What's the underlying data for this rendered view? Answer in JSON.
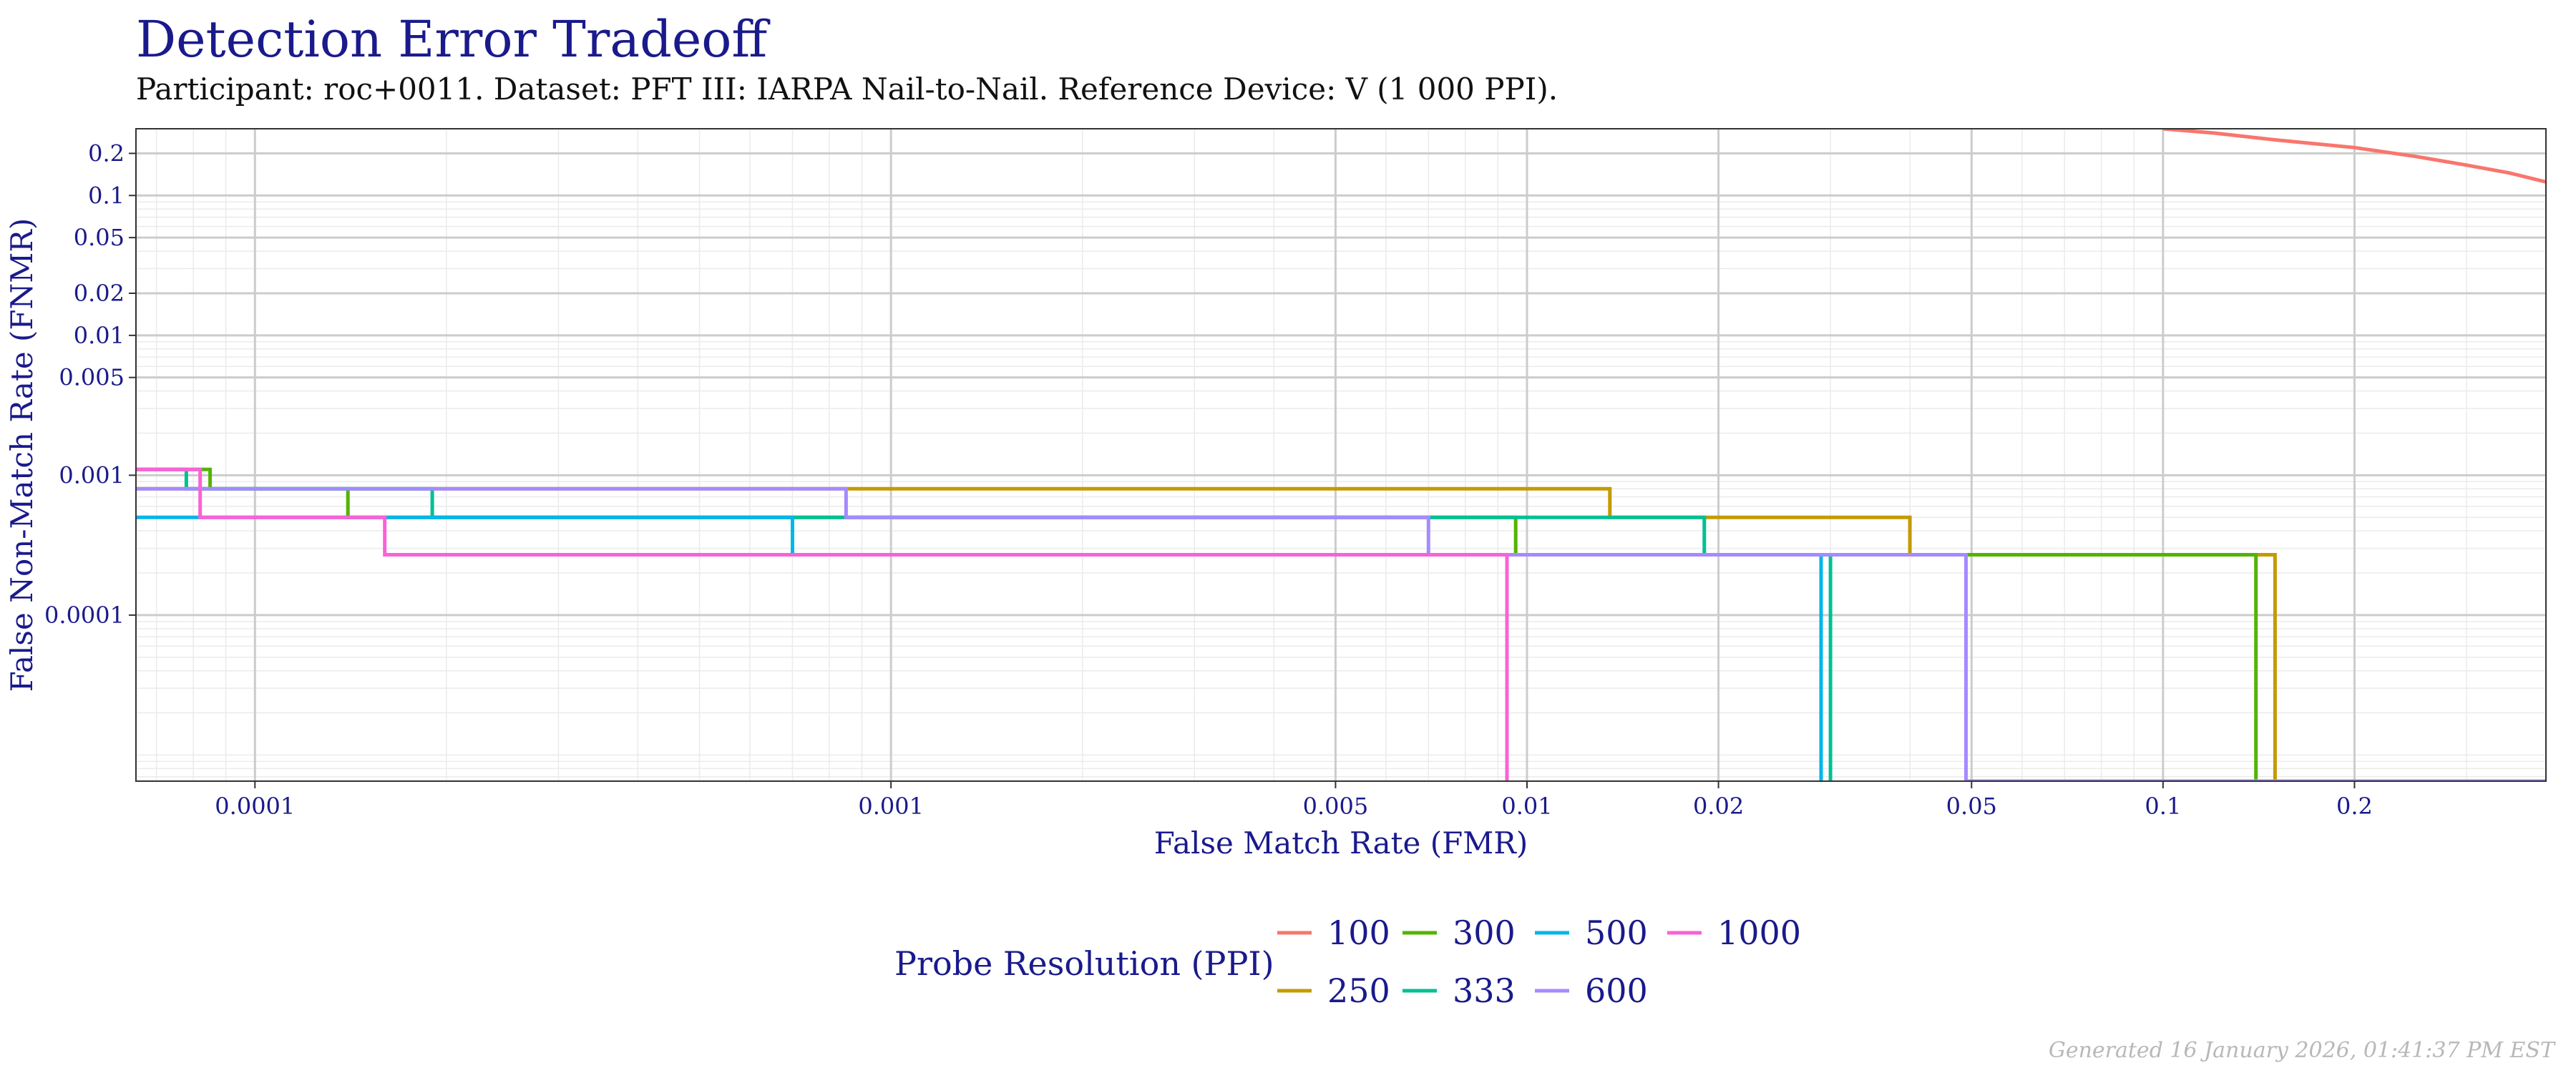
{
  "chart_data": {
    "type": "line",
    "title": "Detection Error Tradeoff",
    "subtitle": "Participant: roc+0011. Dataset: PFT III: IARPA Nail-to-Nail. Reference Device: V (1 000 PPI).",
    "xlabel": "False Match Rate (FMR)",
    "ylabel": "False Non-Match Rate (FNMR)",
    "x_scale": "log",
    "y_scale": "log",
    "xlim": [
      6.5e-05,
      0.4
    ],
    "ylim": [
      6.5e-06,
      0.3
    ],
    "x_ticks": [
      0.0001,
      0.001,
      0.005,
      0.01,
      0.02,
      0.05,
      0.1,
      0.2
    ],
    "x_tick_labels": [
      "0.0001",
      "0.001",
      "0.005",
      "0.01",
      "0.02",
      "0.05",
      "0.1",
      "0.2"
    ],
    "y_ticks": [
      0.2,
      0.1,
      0.05,
      0.02,
      0.01,
      0.005,
      0.001,
      0.0001
    ],
    "y_tick_labels": [
      "0.2",
      "0.1",
      "0.05",
      "0.02",
      "0.01",
      "0.005",
      "0.001",
      "0.0001"
    ],
    "grid": true,
    "legend_title": "Probe Resolution (PPI)",
    "legend_position": "bottom",
    "series": [
      {
        "name": "100",
        "color": "#F8766D",
        "x": [
          0.1,
          0.12,
          0.15,
          0.2,
          0.25,
          0.3,
          0.35,
          0.4
        ],
        "y": [
          0.3,
          0.28,
          0.25,
          0.22,
          0.19,
          0.165,
          0.145,
          0.125
        ]
      },
      {
        "name": "250",
        "color": "#C49A00",
        "x": [
          6.5e-05,
          0.00088,
          0.00088,
          0.0135,
          0.0135,
          0.04,
          0.04,
          0.15,
          0.15
        ],
        "y": [
          0.0008,
          0.0008,
          0.0008,
          0.0008,
          0.0005,
          0.0005,
          0.00027,
          0.00027,
          6.5e-06
        ]
      },
      {
        "name": "300",
        "color": "#53B400",
        "x": [
          6.5e-05,
          8.5e-05,
          8.5e-05,
          0.00014,
          0.00014,
          0.0096,
          0.0096,
          0.14,
          0.14
        ],
        "y": [
          0.0011,
          0.0011,
          0.0008,
          0.0008,
          0.0005,
          0.0005,
          0.00027,
          0.00027,
          6.5e-06
        ]
      },
      {
        "name": "333",
        "color": "#00C094",
        "x": [
          6.5e-05,
          7.8e-05,
          7.8e-05,
          0.00019,
          0.00019,
          0.019,
          0.019,
          0.03,
          0.03
        ],
        "y": [
          0.0011,
          0.0011,
          0.0008,
          0.0008,
          0.0005,
          0.0005,
          0.00027,
          0.00027,
          6.5e-06
        ]
      },
      {
        "name": "500",
        "color": "#00B6EB",
        "x": [
          6.5e-05,
          0.0007,
          0.0007,
          0.029,
          0.029
        ],
        "y": [
          0.0005,
          0.0005,
          0.00027,
          0.00027,
          6.5e-06
        ]
      },
      {
        "name": "600",
        "color": "#A58AFF",
        "x": [
          6.5e-05,
          0.00085,
          0.00085,
          0.007,
          0.007,
          0.049,
          0.049,
          0.4
        ],
        "y": [
          0.0008,
          0.0008,
          0.0005,
          0.0005,
          0.00027,
          0.00027,
          6.5e-06,
          6.5e-06
        ]
      },
      {
        "name": "1000",
        "color": "#FB61D7",
        "x": [
          6.5e-05,
          8.2e-05,
          8.2e-05,
          0.00016,
          0.00016,
          0.0093,
          0.0093
        ],
        "y": [
          0.0011,
          0.0011,
          0.0005,
          0.0005,
          0.00027,
          0.00027,
          6.5e-06
        ]
      }
    ]
  },
  "footer": "Generated 16 January 2026, 01:41:37 PM EST"
}
